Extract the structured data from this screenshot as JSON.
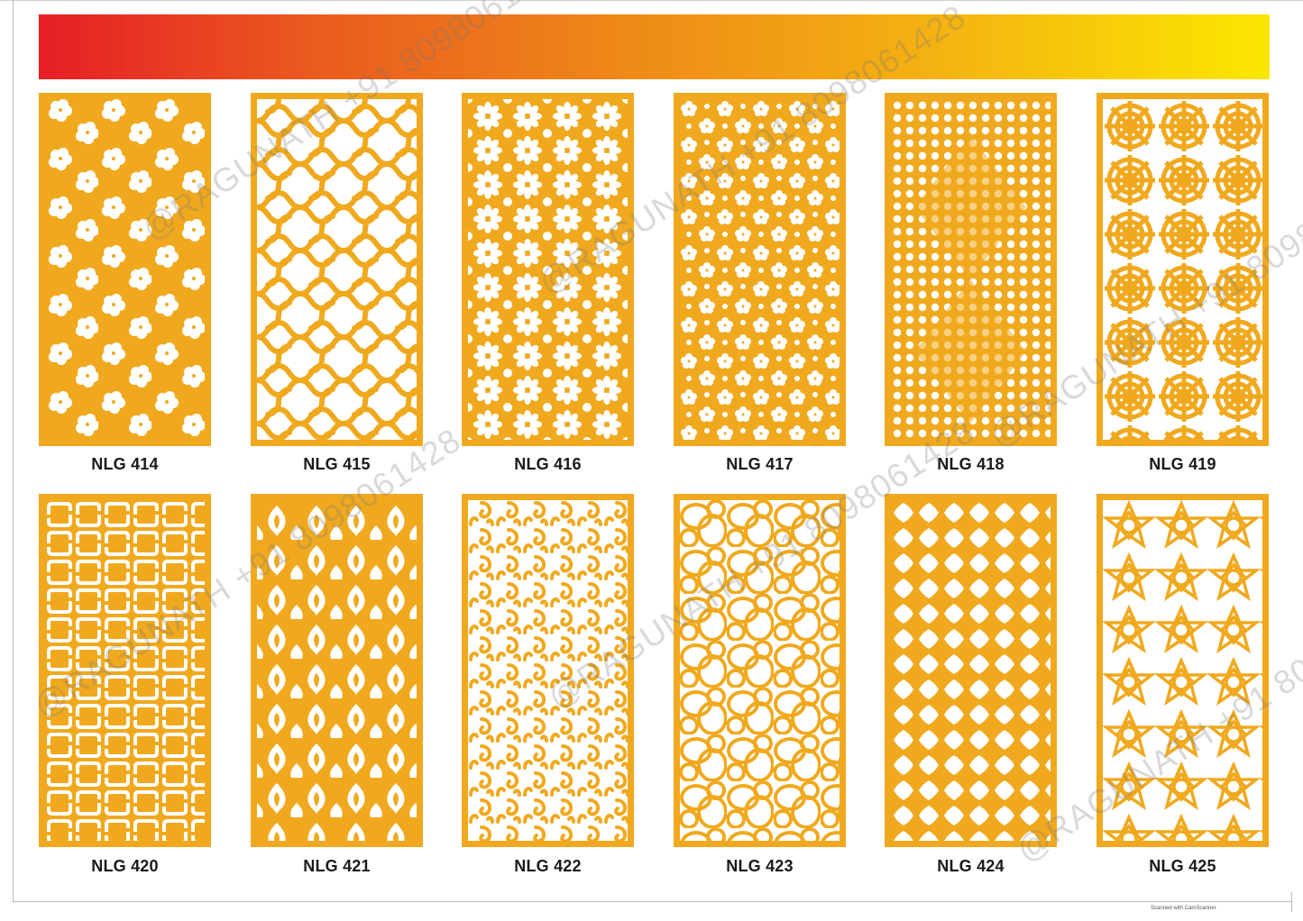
{
  "banner_colors": [
    "#e61e26",
    "#ee8a18",
    "#fbe700"
  ],
  "panel_color": "#f0a91e",
  "panels": [
    {
      "code": "NLG 414",
      "pattern": "hibiscus-flowers"
    },
    {
      "code": "NLG 415",
      "pattern": "scroll-swirls"
    },
    {
      "code": "NLG 416",
      "pattern": "daisy-grid"
    },
    {
      "code": "NLG 417",
      "pattern": "cherry-blossoms"
    },
    {
      "code": "NLG 418",
      "pattern": "dot-diamonds"
    },
    {
      "code": "NLG 419",
      "pattern": "rose-spirals"
    },
    {
      "code": "NLG 420",
      "pattern": "chain-links"
    },
    {
      "code": "NLG 421",
      "pattern": "arabesque-drops"
    },
    {
      "code": "NLG 422",
      "pattern": "curl-scrolls"
    },
    {
      "code": "NLG 423",
      "pattern": "overlapping-rings"
    },
    {
      "code": "NLG 424",
      "pattern": "quatrefoil-lattice"
    },
    {
      "code": "NLG 425",
      "pattern": "geometric-stars"
    }
  ],
  "watermark": "@RAGUNATH +91 8098061428",
  "footer_credit": "Scanned with CamScanner"
}
